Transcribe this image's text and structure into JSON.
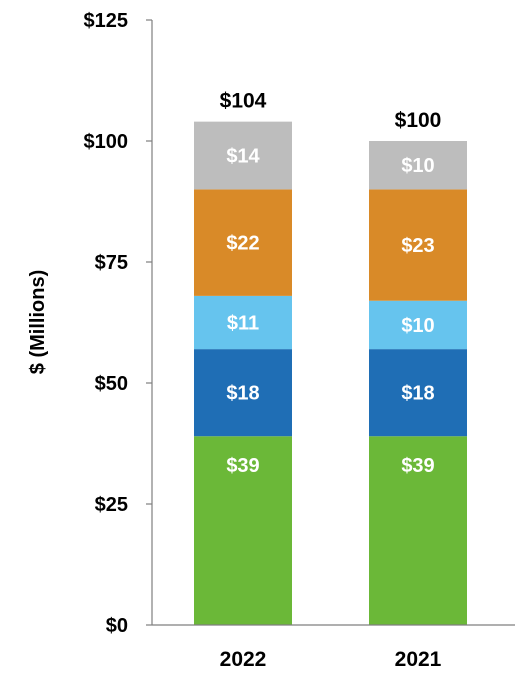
{
  "chart_data": {
    "type": "bar",
    "stacked": true,
    "categories": [
      "2022",
      "2021"
    ],
    "series": [
      {
        "color": "#6BB838",
        "values": [
          39,
          39
        ]
      },
      {
        "color": "#1F6EB5",
        "values": [
          18,
          18
        ]
      },
      {
        "color": "#66C4EE",
        "values": [
          11,
          10
        ]
      },
      {
        "color": "#D98A28",
        "values": [
          22,
          23
        ]
      },
      {
        "color": "#BDBDBD",
        "values": [
          14,
          10
        ]
      }
    ],
    "segment_labels": [
      [
        "$39",
        "$39"
      ],
      [
        "$18",
        "$18"
      ],
      [
        "$11",
        "$10"
      ],
      [
        "$22",
        "$23"
      ],
      [
        "$14",
        "$10"
      ]
    ],
    "totals": [
      104,
      100
    ],
    "total_labels": [
      "$104",
      "$100"
    ],
    "ylabel": "$ (Millions)",
    "ylim": [
      0,
      125
    ],
    "yticks": [
      0,
      25,
      50,
      75,
      100,
      125
    ],
    "ytick_labels": [
      "$0",
      "$25",
      "$50",
      "$75",
      "$100",
      "$125"
    ],
    "grid": false,
    "legend": "none"
  }
}
